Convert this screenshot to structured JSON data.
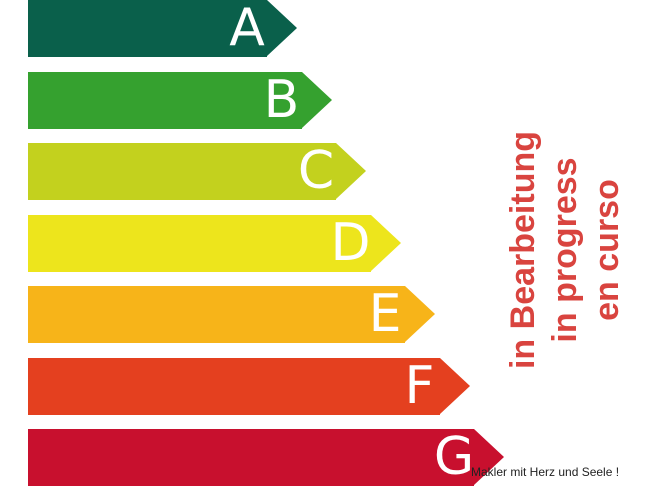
{
  "classes": [
    {
      "letter": "A",
      "color": "#0a604b"
    },
    {
      "letter": "B",
      "color": "#35a12f"
    },
    {
      "letter": "C",
      "color": "#c3d11e"
    },
    {
      "letter": "D",
      "color": "#ede51c"
    },
    {
      "letter": "E",
      "color": "#f7b419"
    },
    {
      "letter": "F",
      "color": "#e4401f"
    },
    {
      "letter": "G",
      "color": "#c8102e"
    }
  ],
  "status": [
    "in Bearbeitung",
    "in progress",
    "en curso"
  ],
  "watermark": "Makler mit Herz und Seele !"
}
